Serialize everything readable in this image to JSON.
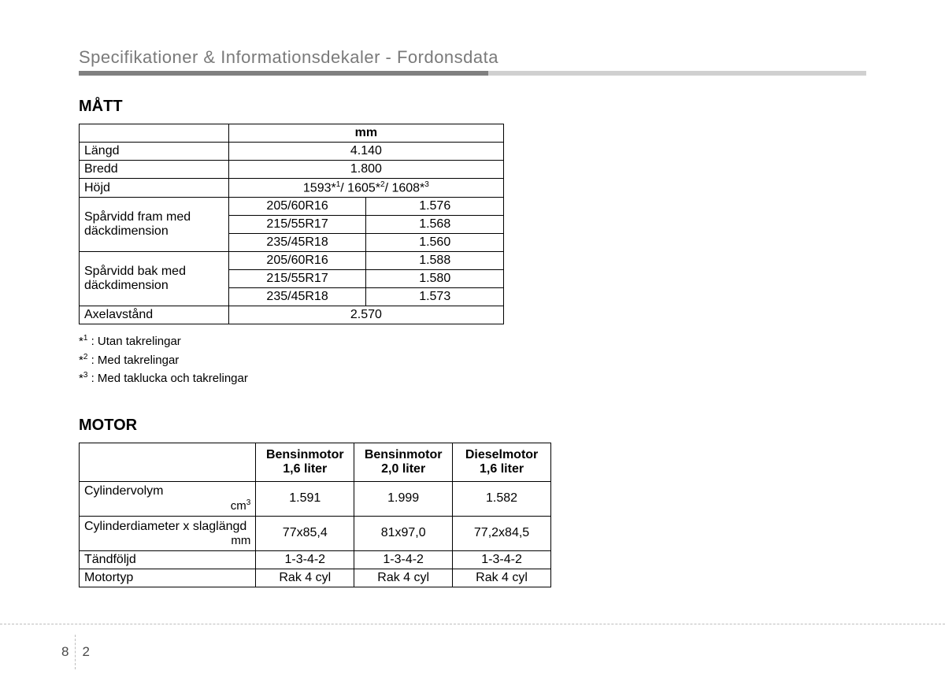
{
  "header": {
    "breadcrumb": "Specifikationer & Informationsdekaler - Fordonsdata"
  },
  "matt": {
    "title": "MÅTT",
    "unit_header": "mm",
    "rows": {
      "length_label": "Längd",
      "length_value": "4.140",
      "width_label": "Bredd",
      "width_value": "1.800",
      "height_label": "Höjd",
      "height_value_1": "1593*",
      "height_value_2": "/ 1605*",
      "height_value_3": "/ 1608*",
      "track_front_label": "Spårvidd fram med däckdimension",
      "track_rear_label": "Spårvidd bak med däckdimension",
      "front": [
        {
          "tire": "205/60R16",
          "val": "1.576"
        },
        {
          "tire": "215/55R17",
          "val": "1.568"
        },
        {
          "tire": "235/45R18",
          "val": "1.560"
        }
      ],
      "rear": [
        {
          "tire": "205/60R16",
          "val": "1.588"
        },
        {
          "tire": "215/55R17",
          "val": "1.580"
        },
        {
          "tire": "235/45R18",
          "val": "1.573"
        }
      ],
      "wheelbase_label": "Axelavstånd",
      "wheelbase_value": "2.570"
    },
    "footnotes": {
      "f1": " : Utan takrelingar",
      "f2": " : Med takrelingar",
      "f3": " : Med taklucka och takrelingar"
    }
  },
  "motor": {
    "title": "MOTOR",
    "col_headers": {
      "c1a": "Bensinmotor",
      "c1b": "1,6 liter",
      "c2a": "Bensinmotor",
      "c2b": "2,0 liter",
      "c3a": "Dieselmotor",
      "c3b": "1,6 liter"
    },
    "rows": {
      "disp_label": "Cylindervolym",
      "disp_unit": "cm",
      "disp": [
        "1.591",
        "1.999",
        "1.582"
      ],
      "bore_label": "Cylinderdiameter x slaglängd",
      "bore_unit": "mm",
      "bore": [
        "77x85,4",
        "81x97,0",
        "77,2x84,5"
      ],
      "firing_label": "Tändföljd",
      "firing": [
        "1-3-4-2",
        "1-3-4-2",
        "1-3-4-2"
      ],
      "type_label": "Motortyp",
      "type": [
        "Rak 4 cyl",
        "Rak 4 cyl",
        "Rak 4 cyl"
      ]
    }
  },
  "footer": {
    "chapter": "8",
    "page": "2"
  },
  "style": {
    "text_color": "#000000",
    "header_color": "#7a7a7a",
    "rule_dark": "#808080",
    "rule_light": "#d0d0d0",
    "dashed_color": "#bdbdbd",
    "body_font_size": 16,
    "title_font_size": 20,
    "header_font_size": 22
  }
}
